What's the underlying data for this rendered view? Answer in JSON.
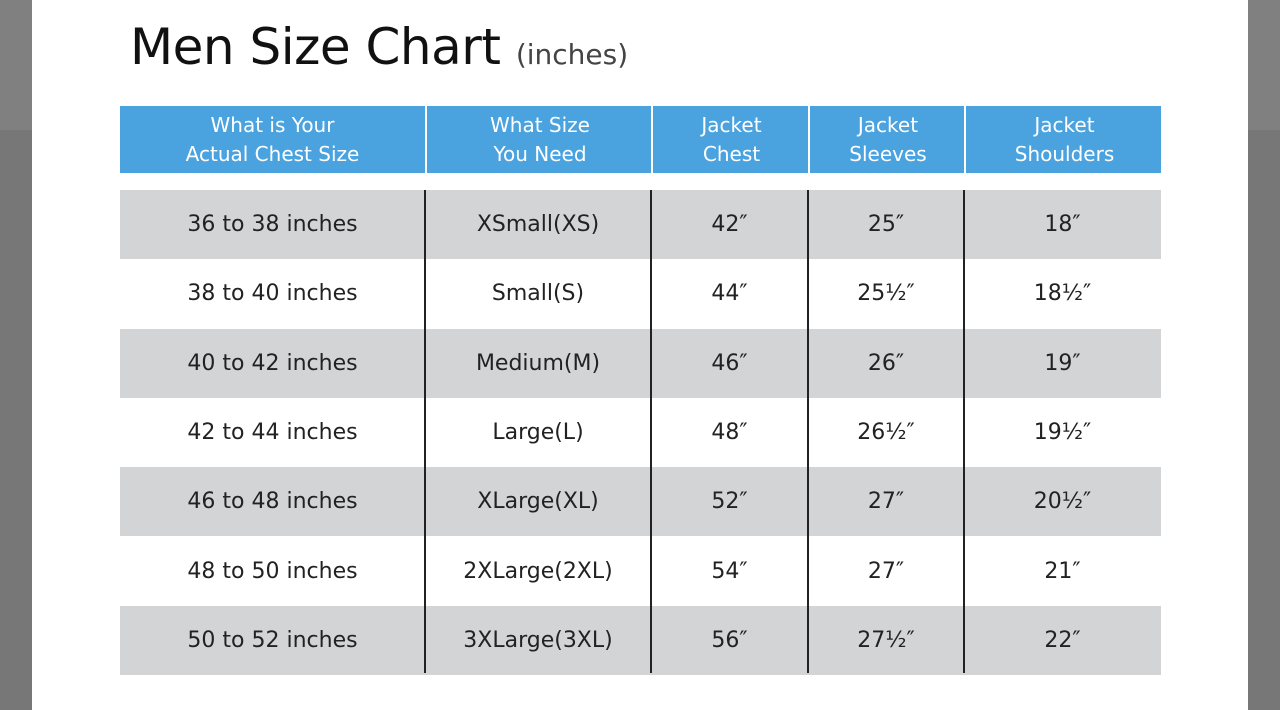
{
  "title": "Men Size Chart",
  "title_unit": "(inches)",
  "colors": {
    "header": "#4aa3df",
    "row_shade": "#d3d4d6"
  },
  "columns": [
    "What is Your\nActual Chest Size",
    "What Size\nYou Need",
    "Jacket\nChest",
    "Jacket\nSleeves",
    "Jacket\nShoulders"
  ],
  "rows": [
    [
      "36 to 38 inches",
      "XSmall(XS)",
      "42″",
      "25″",
      "18″"
    ],
    [
      "38 to 40 inches",
      "Small(S)",
      "44″",
      "25½″",
      "18½″"
    ],
    [
      "40 to 42 inches",
      "Medium(M)",
      "46″",
      "26″",
      "19″"
    ],
    [
      "42 to 44 inches",
      "Large(L)",
      "48″",
      "26½″",
      "19½″"
    ],
    [
      "46 to 48 inches",
      "XLarge(XL)",
      "52″",
      "27″",
      "20½″"
    ],
    [
      "48 to 50 inches",
      "2XLarge(2XL)",
      "54″",
      "27″",
      "21″"
    ],
    [
      "50 to 52 inches",
      "3XLarge(3XL)",
      "56″",
      "27½″",
      "22″"
    ]
  ]
}
